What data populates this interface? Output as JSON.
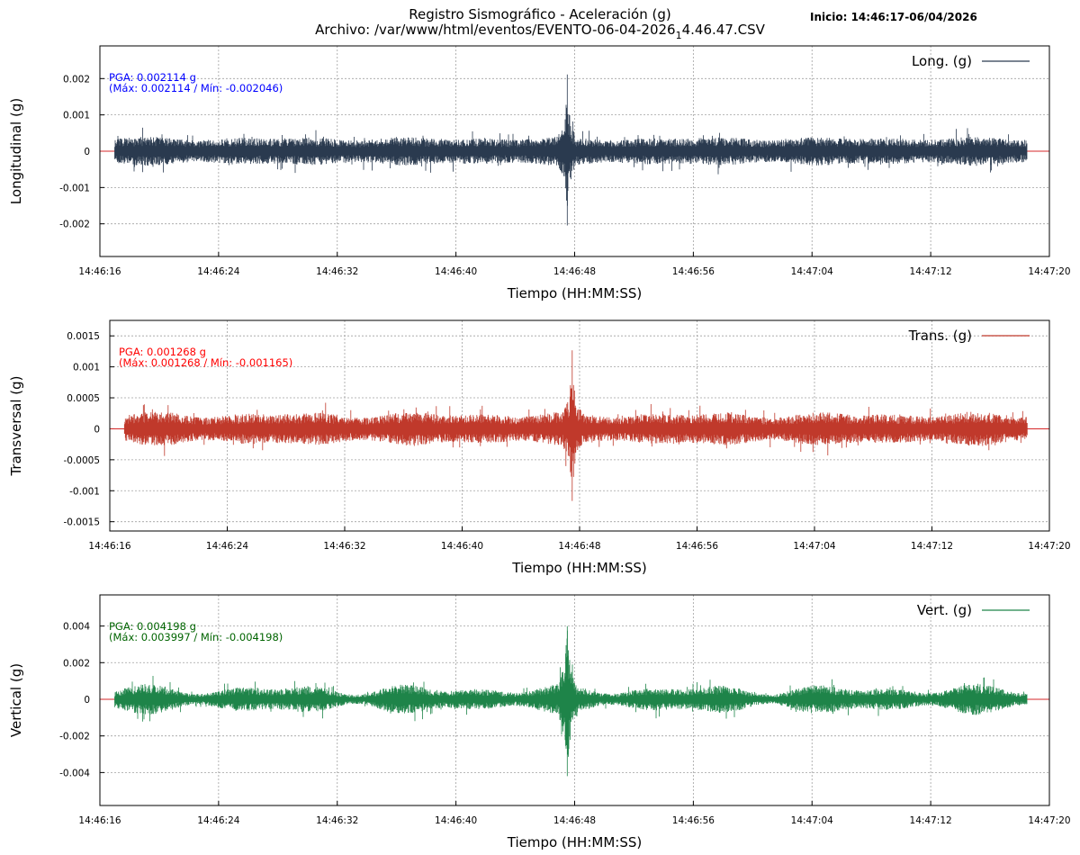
{
  "header": {
    "title_line1": "Registro Sismográfico - Aceleración (g)",
    "title_line2_prefix": "Archivo: /var/www/html/eventos/EVENTO-06-04-2026",
    "title_line2_sub": "1",
    "title_line2_suffix": "4.46.47.CSV",
    "inicio": "Inicio: 14:46:17-06/04/2026"
  },
  "colors": {
    "long": "#2a3a4f",
    "trans": "#c0392b",
    "vert": "#1e8449",
    "zero_line": "#d62728",
    "grid": "#a0a0a0",
    "pga_long": "#0000ff",
    "pga_trans": "#ff0000",
    "pga_vert": "#006400"
  },
  "chart_data": [
    {
      "type": "line",
      "ylabel": "Longitudinal (g)",
      "xlabel": "Tiempo (HH:MM:SS)",
      "legend": "Long. (g)",
      "legend_position": "top-right",
      "grid": true,
      "pga_text": "PGA: 0.002114 g",
      "range_text": "(Máx: 0.002114 / Mín: -0.002046)",
      "pga": 0.002114,
      "max": 0.002114,
      "min": -0.002046,
      "xlim_seconds": [
        16,
        80
      ],
      "signal_seconds": [
        17,
        78.5
      ],
      "event_peak_second": 47.5,
      "ylim": [
        -0.0029,
        0.0029
      ],
      "yticks": [
        0.002,
        0.001,
        0,
        -0.001,
        -0.002
      ],
      "ytick_labels": [
        "0.002",
        "0.001",
        "0",
        "-0.001",
        "-0.002"
      ],
      "xtick_labels": [
        "14:46:16",
        "14:46:24",
        "14:46:32",
        "14:46:40",
        "14:46:48",
        "14:46:56",
        "14:47:04",
        "14:47:12",
        "14:47:20"
      ]
    },
    {
      "type": "line",
      "ylabel": "Transversal (g)",
      "xlabel": "Tiempo (HH:MM:SS)",
      "legend": "Trans. (g)",
      "legend_position": "top-right",
      "grid": true,
      "pga_text": "PGA: 0.001268 g",
      "range_text": "(Máx: 0.001268 / Mín: -0.001165)",
      "pga": 0.001268,
      "max": 0.001268,
      "min": -0.001165,
      "xlim_seconds": [
        16,
        80
      ],
      "signal_seconds": [
        17,
        78.5
      ],
      "event_peak_second": 47.5,
      "ylim": [
        -0.00165,
        0.00175
      ],
      "yticks": [
        0.0015,
        0.001,
        0.0005,
        0,
        -0.0005,
        -0.001,
        -0.0015
      ],
      "ytick_labels": [
        "0.0015",
        "0.001",
        "0.0005",
        "0",
        "-0.0005",
        "-0.001",
        "-0.0015"
      ],
      "xtick_labels": [
        "14:46:16",
        "14:46:24",
        "14:46:32",
        "14:46:40",
        "14:46:48",
        "14:46:56",
        "14:47:04",
        "14:47:12",
        "14:47:20"
      ]
    },
    {
      "type": "line",
      "ylabel": "Vertical (g)",
      "xlabel": "Tiempo (HH:MM:SS)",
      "legend": "Vert. (g)",
      "legend_position": "top-right",
      "grid": true,
      "pga_text": "PGA: 0.004198 g",
      "range_text": "(Máx: 0.003997 / Mín: -0.004198)",
      "pga": 0.004198,
      "max": 0.003997,
      "min": -0.004198,
      "xlim_seconds": [
        16,
        80
      ],
      "signal_seconds": [
        17,
        78.5
      ],
      "event_peak_second": 47.5,
      "ylim": [
        -0.0058,
        0.0057
      ],
      "yticks": [
        0.004,
        0.002,
        0,
        -0.002,
        -0.004
      ],
      "ytick_labels": [
        "0.004",
        "0.002",
        "0",
        "-0.002",
        "-0.004"
      ],
      "xtick_labels": [
        "14:46:16",
        "14:46:24",
        "14:46:32",
        "14:46:40",
        "14:46:48",
        "14:46:56",
        "14:47:04",
        "14:47:12",
        "14:47:20"
      ]
    }
  ]
}
